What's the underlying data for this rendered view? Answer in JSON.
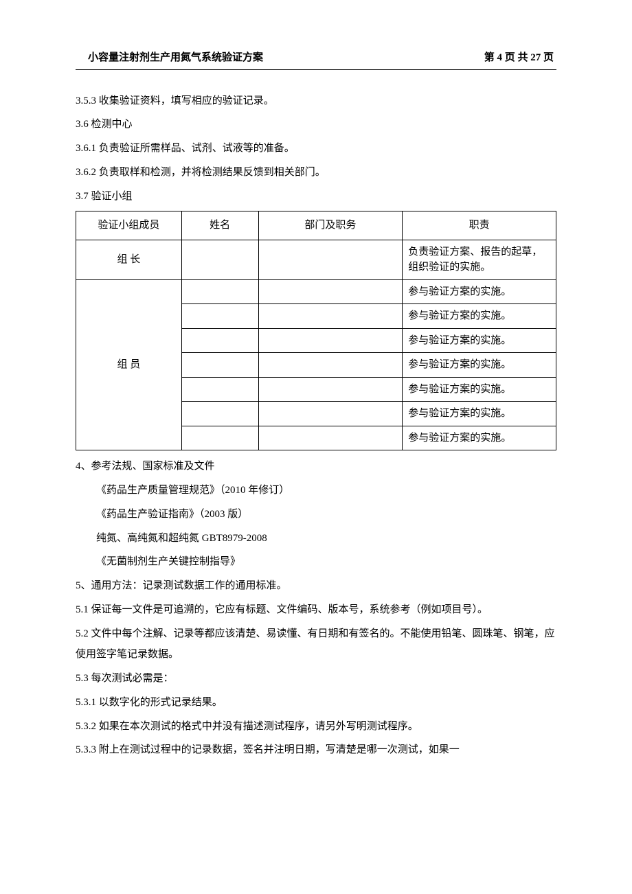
{
  "header": {
    "left": "小容量注射剂生产用氮气系统验证方案",
    "right": "第 4 页 共 27 页"
  },
  "lines": {
    "l353": "3.5.3 收集验证资料，填写相应的验证记录。",
    "l36": "3.6 检测中心",
    "l361": "3.6.1 负责验证所需样品、试剂、试液等的准备。",
    "l362": "3.6.2 负责取样和检测，并将检测结果反馈到相关部门。",
    "l37": "3.7  验证小组",
    "l4": "4、参考法规、国家标准及文件",
    "ref1": "《药品生产质量管理规范》（2010 年修订）",
    "ref2": "《药品生产验证指南》（2003 版）",
    "ref3": "纯氮、高纯氮和超纯氮 GBT8979-2008",
    "ref4": "《无菌制剂生产关键控制指导》",
    "l5": "5、通用方法：记录测试数据工作的通用标准。",
    "l51": "5.1 保证每一文件是可追溯的，它应有标题、文件编码、版本号，系统参考（例如项目号）。",
    "l52": "5.2  文件中每个注解、记录等都应该清楚、易读懂、有日期和有签名的。不能使用铅笔、圆珠笔、钢笔，应使用签字笔记录数据。",
    "l53": "5.3  每次测试必需是：",
    "l531": "5.3.1  以数字化的形式记录结果。",
    "l532": "5.3.2  如果在本次测试的格式中并没有描述测试程序，请另外写明测试程序。",
    "l533": "5.3.3  附上在测试过程中的记录数据，签名并注明日期，写清楚是哪一次测试，如果一"
  },
  "table": {
    "headers": {
      "c1": "验证小组成员",
      "c2": "姓名",
      "c3": "部门及职务",
      "c4": "职责"
    },
    "leader_label": "组  长",
    "leader_duty": "负责验证方案、报告的起草，组织验证的实施。",
    "member_label": "组 员",
    "member_duty": "参与验证方案的实施。",
    "member_count": 7
  }
}
